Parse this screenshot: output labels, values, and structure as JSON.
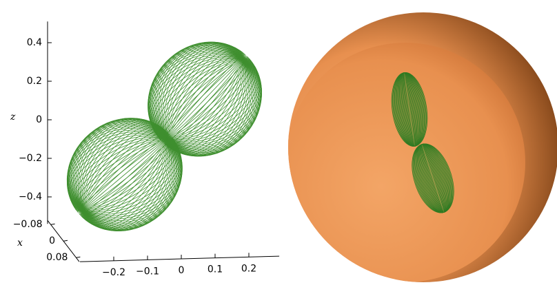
{
  "chart_data": {
    "type": "surface3d",
    "zlabel": "z",
    "xlabel": "x",
    "zlim": [
      -0.54,
      0.51
    ],
    "zticks": [
      0.4,
      0.2,
      0,
      {
        "value": -0.2,
        "label": "−0.2"
      },
      {
        "value": -0.4,
        "label": "−0.4"
      }
    ],
    "ylim": [
      -0.3,
      0.29
    ],
    "yticks": [
      {
        "value": -0.2,
        "label": "−0.2"
      },
      {
        "value": -0.1,
        "label": "−0.1"
      },
      0,
      0.1,
      0.2
    ],
    "xlim": [
      -0.1,
      0.1
    ],
    "xticks": [
      {
        "value": -0.08,
        "label": "−0.08"
      },
      0,
      0.08
    ],
    "color": "#3f8f2f",
    "sphere_color": "#e8904f"
  }
}
